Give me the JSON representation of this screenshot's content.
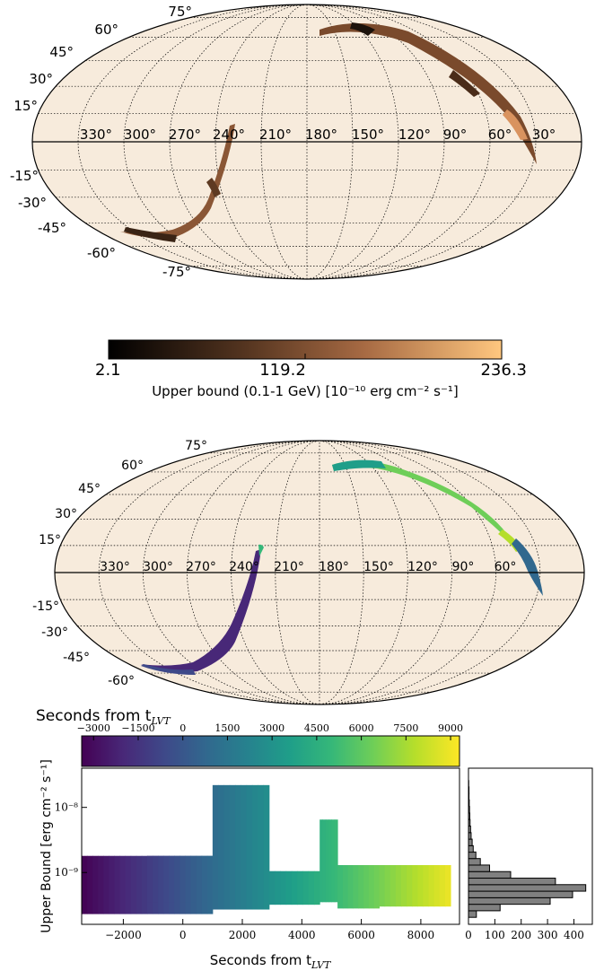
{
  "colors": {
    "map_background": "#f7ebdc",
    "copper_low": "#000000",
    "copper_high": "#ffc77f",
    "viridis": [
      "#440154",
      "#482878",
      "#3e4989",
      "#31688e",
      "#26828e",
      "#1f9e89",
      "#35b779",
      "#6ece58",
      "#b5de2b",
      "#fde725"
    ]
  },
  "map1": {
    "meridian_labels": [
      "330°",
      "300°",
      "270°",
      "240°",
      "210°",
      "180°",
      "150°",
      "120°",
      "90°",
      "60°",
      "30°"
    ],
    "parallel_labels": [
      "75°",
      "60°",
      "45°",
      "30°",
      "15°",
      "-15°",
      "-30°",
      "-45°",
      "-60°",
      "-75°"
    ]
  },
  "colorbar1": {
    "ticks": [
      "2.1",
      "119.2",
      "236.3"
    ],
    "tick_values": [
      2.1,
      119.2,
      236.3
    ],
    "range": [
      2.1,
      236.3
    ],
    "label": "Upper bound (0.1-1 GeV) [10⁻¹⁰ erg cm⁻² s⁻¹]",
    "colormap": "copper"
  },
  "map2": {
    "meridian_labels": [
      "330°",
      "300°",
      "270°",
      "240°",
      "210°",
      "180°",
      "150°",
      "120°",
      "90°",
      "60°"
    ],
    "parallel_labels": [
      "75°",
      "60°",
      "45°",
      "30°",
      "15°",
      "-15°",
      "-30°",
      "-45°",
      "-60°"
    ]
  },
  "colorbar2": {
    "title": "Seconds from t",
    "title_sub": "LVT",
    "ticks": [
      "−3000",
      "−1500",
      "0",
      "1500",
      "3000",
      "4500",
      "6000",
      "7500",
      "9000"
    ],
    "tick_values": [
      -3000,
      -1500,
      0,
      1500,
      3000,
      4500,
      6000,
      7500,
      9000
    ],
    "range": [
      -3400,
      9300
    ],
    "colormap": "viridis"
  },
  "chart_data": [
    {
      "type": "scatter",
      "title": "",
      "xlabel": "Seconds from t_LVT",
      "ylabel": "Upper Bound [erg cm⁻² s⁻¹]",
      "x_tick_labels": [
        "−2000",
        "0",
        "2000",
        "4000",
        "6000",
        "8000"
      ],
      "x_ticks": [
        -2000,
        0,
        2000,
        4000,
        6000,
        8000
      ],
      "y_tick_labels": [
        "10⁻⁹",
        "10⁻⁸"
      ],
      "y_ticks": [
        1e-09,
        1e-08
      ],
      "xlim": [
        -3400,
        9300
      ],
      "ylim": [
        1.6e-10,
        4e-08
      ],
      "yscale": "log",
      "grid": false,
      "series": [
        {
          "x_range": [
            -3400,
            1000
          ],
          "y_range": [
            2.3e-10,
            1.8e-09
          ]
        },
        {
          "x_range": [
            -1200,
            1000
          ],
          "y_range": [
            3.5e-10,
            1.8e-09
          ]
        },
        {
          "x_range": [
            1000,
            2900
          ],
          "y_range": [
            2.7e-10,
            2.2e-08
          ]
        },
        {
          "x_range": [
            2900,
            4600
          ],
          "y_range": [
            3.2e-10,
            1.05e-09
          ]
        },
        {
          "x_range": [
            4600,
            5200
          ],
          "y_range": [
            3.5e-10,
            6.5e-09
          ]
        },
        {
          "x_range": [
            5200,
            6600
          ],
          "y_range": [
            2.8e-10,
            1.3e-09
          ]
        },
        {
          "x_range": [
            6600,
            9000
          ],
          "y_range": [
            3e-10,
            1.3e-09
          ]
        }
      ]
    },
    {
      "type": "bar",
      "orientation": "horizontal",
      "x_tick_labels": [
        "0",
        "100",
        "200",
        "300",
        "400"
      ],
      "x_ticks": [
        0,
        100,
        200,
        300,
        400
      ],
      "xlim": [
        0,
        470
      ],
      "bins": [
        {
          "y": 2.3e-10,
          "count": 30
        },
        {
          "y": 2.9e-10,
          "count": 120
        },
        {
          "y": 3.65e-10,
          "count": 310
        },
        {
          "y": 4.6e-10,
          "count": 395
        },
        {
          "y": 5.8e-10,
          "count": 445
        },
        {
          "y": 7.3e-10,
          "count": 330
        },
        {
          "y": 9.2e-10,
          "count": 160
        },
        {
          "y": 1.16e-09,
          "count": 80
        },
        {
          "y": 1.46e-09,
          "count": 45
        },
        {
          "y": 1.84e-09,
          "count": 28
        },
        {
          "y": 2.3e-09,
          "count": 18
        },
        {
          "y": 2.9e-09,
          "count": 14
        },
        {
          "y": 3.65e-09,
          "count": 10
        },
        {
          "y": 4.6e-09,
          "count": 8
        },
        {
          "y": 5.8e-09,
          "count": 6
        },
        {
          "y": 7.3e-09,
          "count": 5
        },
        {
          "y": 9.2e-09,
          "count": 4
        },
        {
          "y": 1.16e-08,
          "count": 3
        },
        {
          "y": 1.46e-08,
          "count": 2
        },
        {
          "y": 1.84e-08,
          "count": 2
        },
        {
          "y": 2.3e-08,
          "count": 1
        }
      ]
    }
  ]
}
